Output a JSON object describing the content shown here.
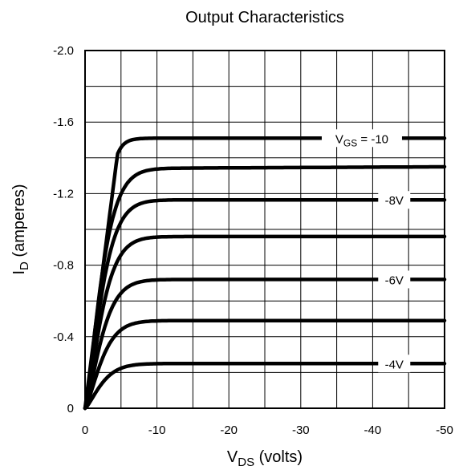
{
  "chart_data": {
    "type": "line",
    "title": "Output Characteristics",
    "xlabel": {
      "main": "V",
      "sub": "DS",
      "rest": " (volts)"
    },
    "ylabel": {
      "main": "I",
      "sub": "D",
      "rest": " (amperes)"
    },
    "xlim": [
      0,
      -50
    ],
    "ylim": [
      0,
      -2.0
    ],
    "xticks": [
      "0",
      "-10",
      "-20",
      "-30",
      "-40",
      "-50"
    ],
    "xtick_values": [
      0,
      -10,
      -20,
      -30,
      -40,
      -50
    ],
    "yticks": [
      "0",
      "-0.4",
      "-0.8",
      "-1.2",
      "-1.6",
      "-2.0"
    ],
    "ytick_values": [
      0,
      -0.4,
      -0.8,
      -1.2,
      -1.6,
      -2.0
    ],
    "grid": true,
    "minor_grid_y": true,
    "series": [
      {
        "label": "",
        "sat": -0.25,
        "knee": 5,
        "type": "soft"
      },
      {
        "label": "",
        "sat": -0.49,
        "knee": 5,
        "type": "soft"
      },
      {
        "label": "",
        "sat": -0.72,
        "knee": 5,
        "type": "soft"
      },
      {
        "label": "",
        "sat": -0.96,
        "knee": 5,
        "type": "soft"
      },
      {
        "label": "",
        "sat": -1.165,
        "knee": 5,
        "type": "soft"
      },
      {
        "label": "",
        "sat": -1.34,
        "sat_end": -1.35,
        "knee": 5,
        "type": "soft"
      },
      {
        "label": "",
        "sat": -1.51,
        "knee": 4.5,
        "type": "sharp"
      }
    ],
    "curve_labels": [
      {
        "main": "V",
        "sub": "GS",
        "rest": " = -10",
        "series": 6,
        "x": -38.5
      },
      {
        "main": "",
        "sub": "",
        "rest": "-8V",
        "series": 4,
        "x": -43
      },
      {
        "main": "",
        "sub": "",
        "rest": "-6V",
        "series": 2,
        "x": -43
      },
      {
        "main": "",
        "sub": "",
        "rest": "-4V",
        "series": 0,
        "x": -43
      }
    ]
  }
}
